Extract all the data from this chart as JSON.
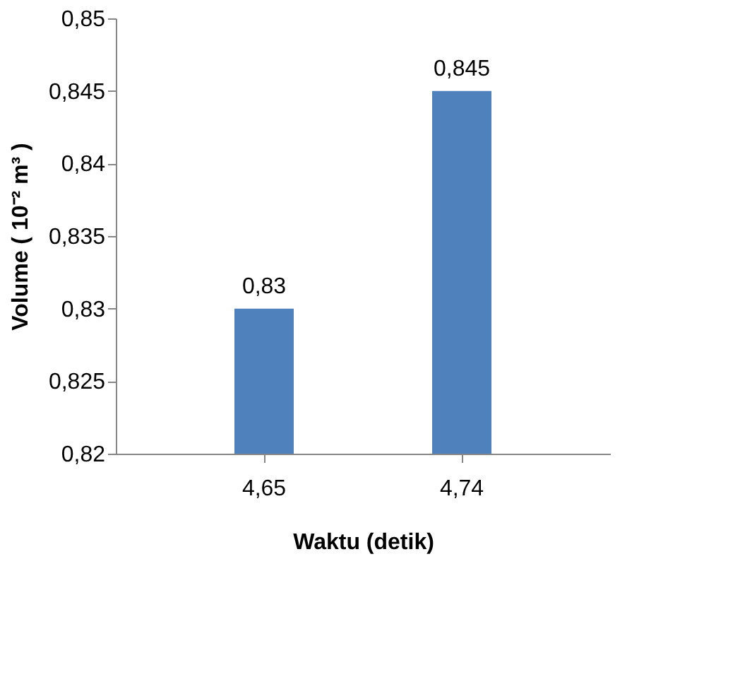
{
  "chart_data": {
    "type": "bar",
    "xlabel": "Waktu (detik)",
    "ylabel": "Volume ( 10⁻² m³ )",
    "categories": [
      "4,65",
      "4,74"
    ],
    "values": [
      0.83,
      0.845
    ],
    "value_labels": [
      "0,83",
      "0,845"
    ],
    "color": "#4f81bd",
    "ylim": [
      0.82,
      0.85
    ],
    "yticks": [
      {
        "value": 0.82,
        "label": "0,82"
      },
      {
        "value": 0.825,
        "label": "0,825"
      },
      {
        "value": 0.83,
        "label": "0,83"
      },
      {
        "value": 0.835,
        "label": "0,835"
      },
      {
        "value": 0.84,
        "label": "0,84"
      },
      {
        "value": 0.845,
        "label": "0,845"
      },
      {
        "value": 0.85,
        "label": "0,85"
      }
    ],
    "grid": false
  }
}
